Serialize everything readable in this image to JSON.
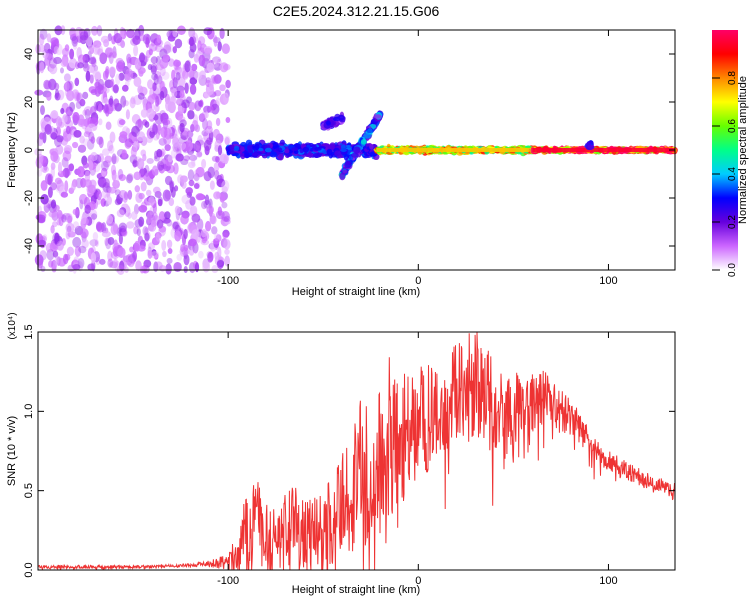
{
  "figure_title": "C2E5.2024.312.21.15.G06",
  "chart_data": [
    {
      "type": "heatmap",
      "title": "C2E5.2024.312.21.15.G06",
      "xlabel": "Height of straight line (km)",
      "ylabel": "Frequency (Hz)",
      "xlim": [
        -200,
        135
      ],
      "ylim": [
        -50,
        50
      ],
      "xticks": [
        -100,
        0,
        100
      ],
      "yticks": [
        -40,
        -20,
        0,
        20,
        40
      ],
      "xtick_labels": [
        "-100",
        "0",
        "100"
      ],
      "ytick_labels": [
        "-40",
        "-20",
        "0",
        "20",
        "40"
      ],
      "colorbar": {
        "label": "Normalized spectral amplitude",
        "range": [
          0,
          1
        ],
        "ticks": [
          0.0,
          0.2,
          0.4,
          0.6,
          0.8
        ],
        "tick_labels": [
          "0.0",
          "0.2",
          "0.4",
          "0.6",
          "0.8"
        ],
        "colormap_stops": [
          "#ffffff",
          "#cc66ff",
          "#6600dd",
          "#0000ff",
          "#00ccff",
          "#00ff88",
          "#66ff00",
          "#ffff00",
          "#ff8800",
          "#ff0000",
          "#ff0066"
        ]
      },
      "features": [
        {
          "name": "broadband noise",
          "x_range": [
            -200,
            -100
          ],
          "freq_range": [
            -50,
            50
          ],
          "amplitude": 0.1
        },
        {
          "name": "diffuse signal",
          "x_range": [
            -100,
            -22
          ],
          "freq_center": 0,
          "freq_halfwidth": 4,
          "amplitude": 0.3
        },
        {
          "name": "upward branch",
          "x_range": [
            -50,
            -40
          ],
          "freq_values": [
            10,
            13
          ],
          "amplitude": 0.2
        },
        {
          "name": "rising branch",
          "x_range": [
            -40,
            -20
          ],
          "freq_values": [
            -10,
            15
          ],
          "amplitude": 0.3
        },
        {
          "name": "tone",
          "x_range": [
            -22,
            60
          ],
          "freq_center": 0,
          "freq_halfwidth": 1.5,
          "amplitude": 0.75
        },
        {
          "name": "steady tone",
          "x_range": [
            60,
            135
          ],
          "freq_center": 0,
          "freq_halfwidth": 1,
          "amplitude": 0.95
        },
        {
          "name": "blip",
          "x_range": [
            89,
            91
          ],
          "freq_center": 2,
          "freq_halfwidth": 2,
          "amplitude": 0.3
        }
      ]
    },
    {
      "type": "line",
      "title": "",
      "xlabel": "Height of straight line (km)",
      "ylabel": "SNR (10 * v/v)",
      "yscale_label": "(x10⁴)",
      "xlim": [
        -200,
        135
      ],
      "ylim": [
        0,
        1.5
      ],
      "xticks": [
        -100,
        0,
        100
      ],
      "yticks": [
        0.0,
        0.5,
        1.0,
        1.5
      ],
      "xtick_labels": [
        "-100",
        "0",
        "100"
      ],
      "ytick_labels": [
        "0.0",
        "0.5",
        "1.0",
        "1.5"
      ],
      "series": [
        {
          "name": "SNR",
          "color": "#ee3333",
          "x": [
            -200,
            -180,
            -160,
            -140,
            -120,
            -110,
            -100,
            -95,
            -90,
            -85,
            -80,
            -75,
            -70,
            -65,
            -60,
            -55,
            -50,
            -45,
            -40,
            -35,
            -30,
            -25,
            -20,
            -15,
            -10,
            -5,
            0,
            5,
            10,
            15,
            20,
            25,
            30,
            35,
            40,
            45,
            50,
            55,
            60,
            65,
            70,
            75,
            80,
            85,
            90,
            95,
            100,
            105,
            110,
            115,
            120,
            125,
            130,
            135
          ],
          "values": [
            0.02,
            0.02,
            0.02,
            0.02,
            0.03,
            0.04,
            0.05,
            0.12,
            0.25,
            0.32,
            0.25,
            0.2,
            0.24,
            0.3,
            0.22,
            0.2,
            0.25,
            0.3,
            0.38,
            0.5,
            0.65,
            0.55,
            0.7,
            0.85,
            0.75,
            0.9,
            1.0,
            0.95,
            1.05,
            1.1,
            1.12,
            1.15,
            1.2,
            1.1,
            1.05,
            1.0,
            0.95,
            1.0,
            1.05,
            1.1,
            1.05,
            1.0,
            0.95,
            0.9,
            0.8,
            0.72,
            0.7,
            0.66,
            0.62,
            0.6,
            0.57,
            0.55,
            0.52,
            0.5
          ],
          "noise": [
            0.01,
            0.01,
            0.01,
            0.01,
            0.01,
            0.02,
            0.05,
            0.15,
            0.3,
            0.3,
            0.25,
            0.2,
            0.25,
            0.25,
            0.25,
            0.25,
            0.25,
            0.3,
            0.35,
            0.4,
            0.5,
            0.4,
            0.5,
            0.5,
            0.45,
            0.4,
            0.35,
            0.35,
            0.35,
            0.35,
            0.35,
            0.35,
            0.35,
            0.35,
            0.3,
            0.3,
            0.3,
            0.25,
            0.2,
            0.2,
            0.15,
            0.15,
            0.12,
            0.1,
            0.1,
            0.08,
            0.07,
            0.06,
            0.06,
            0.05,
            0.05,
            0.05,
            0.05,
            0.05
          ]
        }
      ]
    }
  ]
}
